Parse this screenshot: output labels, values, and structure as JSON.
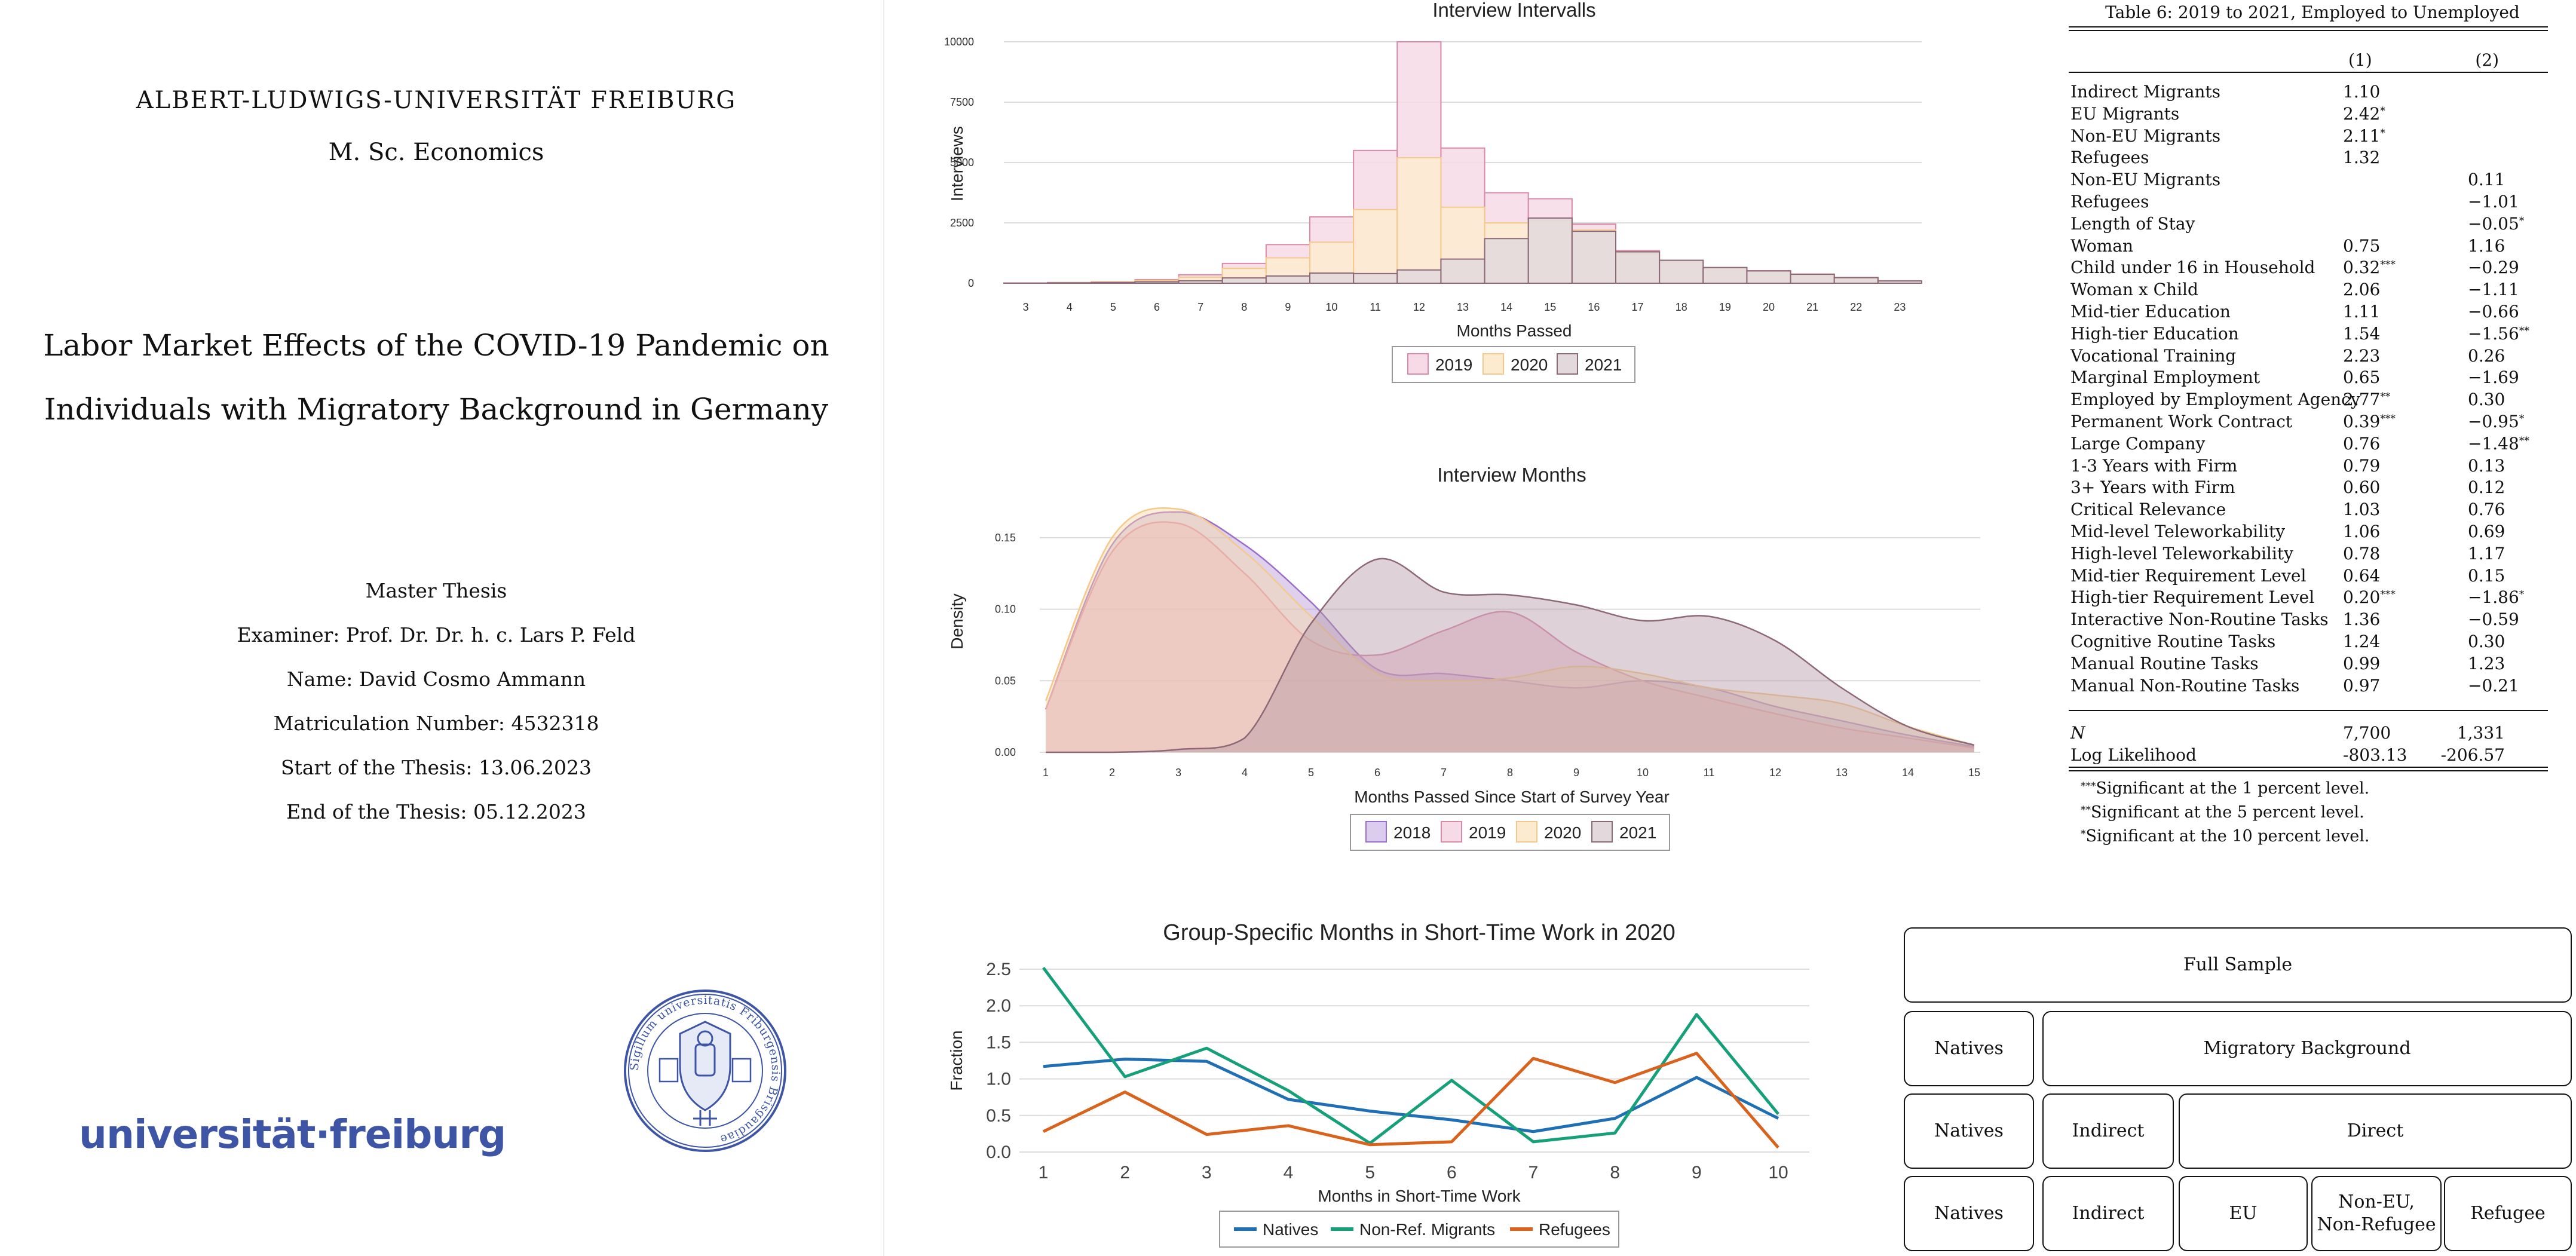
{
  "title_page": {
    "university": "ALBERT-LUDWIGS-UNIVERSITÄT FREIBURG",
    "degree": "M. Sc. Economics",
    "title_line1": "Labor Market Effects of the COVID-19 Pandemic on",
    "title_line2": "Individuals with Migratory Background in Germany",
    "meta": [
      "Master Thesis",
      "Examiner: Prof. Dr. Dr. h. c. Lars P. Feld",
      "Name: David Cosmo Ammann",
      "Matriculation Number: 4532318",
      "Start of the Thesis: 13.06.2023",
      "End of the Thesis: 05.12.2023"
    ],
    "logo_text": "universität·freiburg",
    "seal_text": "Sigillum universitatis Friburgensis Brisgaudiae"
  },
  "colors": {
    "y2018": "#9b6fc9",
    "y2019": "#d98aa8",
    "y2020": "#f5c98c",
    "y2021": "#8d6877",
    "natives": "#1f6fb4",
    "nonref": "#16a07a",
    "refugees": "#d9631c",
    "brand": "#3d55a4"
  },
  "chart_data": [
    {
      "type": "bar",
      "title": "Interview Intervalls",
      "xlabel": "Months Passed",
      "ylabel": "Interviews",
      "ylim": [
        0,
        10000
      ],
      "yticks": [
        "0",
        "2500",
        "5000",
        "7500",
        "10000"
      ],
      "categories": [
        "3",
        "4",
        "5",
        "6",
        "7",
        "8",
        "9",
        "10",
        "11",
        "12",
        "13",
        "14",
        "15",
        "16",
        "17",
        "18",
        "19",
        "20",
        "21",
        "22",
        "23"
      ],
      "series": [
        {
          "name": "2019",
          "values": [
            10,
            30,
            60,
            150,
            350,
            820,
            1600,
            2750,
            5500,
            10000,
            5600,
            3750,
            3500,
            2450,
            1350,
            950,
            650,
            520,
            380,
            240,
            100
          ]
        },
        {
          "name": "2020",
          "values": [
            5,
            20,
            50,
            120,
            250,
            620,
            1050,
            1700,
            3050,
            5200,
            3150,
            2500,
            2600,
            2200,
            1250,
            900,
            620,
            500,
            360,
            230,
            95
          ]
        },
        {
          "name": "2021",
          "values": [
            5,
            15,
            30,
            60,
            100,
            220,
            300,
            420,
            400,
            550,
            1000,
            1850,
            2700,
            2150,
            1300,
            950,
            650,
            510,
            370,
            230,
            95
          ]
        }
      ],
      "grid": true,
      "legend": "bottom"
    },
    {
      "type": "area",
      "title": "Interview Months",
      "xlabel": "Months Passed Since Start of Survey Year",
      "ylabel": "Density",
      "ylim": [
        0,
        0.175
      ],
      "yticks": [
        "0.00",
        "0.05",
        "0.10",
        "0.15"
      ],
      "x": [
        1,
        2,
        3,
        4,
        5,
        6,
        7,
        8,
        9,
        10,
        11,
        12,
        13,
        14,
        15
      ],
      "series": [
        {
          "name": "2018",
          "values": [
            0.03,
            0.145,
            0.168,
            0.145,
            0.105,
            0.058,
            0.055,
            0.05,
            0.045,
            0.05,
            0.045,
            0.032,
            0.022,
            0.012,
            0.004
          ]
        },
        {
          "name": "2019",
          "values": [
            0.03,
            0.14,
            0.16,
            0.125,
            0.078,
            0.068,
            0.085,
            0.098,
            0.07,
            0.05,
            0.038,
            0.027,
            0.017,
            0.01,
            0.003
          ]
        },
        {
          "name": "2020",
          "values": [
            0.036,
            0.15,
            0.17,
            0.14,
            0.095,
            0.055,
            0.05,
            0.052,
            0.06,
            0.055,
            0.045,
            0.04,
            0.034,
            0.018,
            0.005
          ]
        },
        {
          "name": "2021",
          "values": [
            0.0,
            0.0,
            0.002,
            0.01,
            0.09,
            0.135,
            0.112,
            0.11,
            0.103,
            0.092,
            0.095,
            0.078,
            0.045,
            0.018,
            0.005
          ]
        }
      ],
      "grid": true,
      "legend": "bottom"
    },
    {
      "type": "line",
      "title": "Group-Specific Months in Short-Time Work in 2020",
      "xlabel": "Months in Short-Time Work",
      "ylabel": "Fraction",
      "ylim": [
        0,
        2.5
      ],
      "yticks": [
        "0.0",
        "0.5",
        "1.0",
        "1.5",
        "2.0",
        "2.5"
      ],
      "x": [
        1,
        2,
        3,
        4,
        5,
        6,
        7,
        8,
        9,
        10
      ],
      "series": [
        {
          "name": "Natives",
          "values": [
            1.17,
            1.27,
            1.24,
            0.72,
            0.56,
            0.44,
            0.28,
            0.46,
            1.02,
            0.46
          ]
        },
        {
          "name": "Non-Ref. Migrants",
          "values": [
            2.52,
            1.03,
            1.42,
            0.84,
            0.12,
            0.98,
            0.14,
            0.26,
            1.88,
            0.52
          ]
        },
        {
          "name": "Refugees",
          "values": [
            0.28,
            0.82,
            0.24,
            0.36,
            0.1,
            0.14,
            1.28,
            0.95,
            1.35,
            0.06
          ]
        }
      ],
      "grid": true,
      "legend": "bottom"
    }
  ],
  "table": {
    "caption": "Table 6: 2019 to 2021, Employed to Unemployed",
    "col_headers": [
      "(1)",
      "(2)"
    ],
    "rows": [
      {
        "label": "Indirect Migrants",
        "c1": "1.10",
        "c1s": "",
        "c2": "",
        "c2s": ""
      },
      {
        "label": "EU Migrants",
        "c1": "2.42",
        "c1s": "*",
        "c2": "",
        "c2s": ""
      },
      {
        "label": "Non-EU Migrants",
        "c1": "2.11",
        "c1s": "*",
        "c2": "",
        "c2s": ""
      },
      {
        "label": "Refugees",
        "c1": "1.32",
        "c1s": "",
        "c2": "",
        "c2s": ""
      },
      {
        "label": "Non-EU Migrants",
        "c1": "",
        "c1s": "",
        "c2": "0.11",
        "c2s": ""
      },
      {
        "label": "Refugees",
        "c1": "",
        "c1s": "",
        "c2": "−1.01",
        "c2s": ""
      },
      {
        "label": "Length of Stay",
        "c1": "",
        "c1s": "",
        "c2": "−0.05",
        "c2s": "*"
      },
      {
        "label": "Woman",
        "c1": "0.75",
        "c1s": "",
        "c2": "1.16",
        "c2s": ""
      },
      {
        "label": "Child under 16 in Household",
        "c1": "0.32",
        "c1s": "***",
        "c2": "−0.29",
        "c2s": ""
      },
      {
        "label": "Woman x Child",
        "c1": "2.06",
        "c1s": "",
        "c2": "−1.11",
        "c2s": ""
      },
      {
        "label": "Mid-tier Education",
        "c1": "1.11",
        "c1s": "",
        "c2": "−0.66",
        "c2s": ""
      },
      {
        "label": "High-tier Education",
        "c1": "1.54",
        "c1s": "",
        "c2": "−1.56",
        "c2s": "**"
      },
      {
        "label": "Vocational Training",
        "c1": "2.23",
        "c1s": "",
        "c2": "0.26",
        "c2s": ""
      },
      {
        "label": "Marginal Employment",
        "c1": "0.65",
        "c1s": "",
        "c2": "−1.69",
        "c2s": ""
      },
      {
        "label": "Employed by Employment Agency",
        "c1": "2.77",
        "c1s": "**",
        "c2": "0.30",
        "c2s": ""
      },
      {
        "label": "Permanent Work Contract",
        "c1": "0.39",
        "c1s": "***",
        "c2": "−0.95",
        "c2s": "*"
      },
      {
        "label": "Large Company",
        "c1": "0.76",
        "c1s": "",
        "c2": "−1.48",
        "c2s": "**"
      },
      {
        "label": "1-3 Years with Firm",
        "c1": "0.79",
        "c1s": "",
        "c2": "0.13",
        "c2s": ""
      },
      {
        "label": "3+ Years with Firm",
        "c1": "0.60",
        "c1s": "",
        "c2": "0.12",
        "c2s": ""
      },
      {
        "label": "Critical Relevance",
        "c1": "1.03",
        "c1s": "",
        "c2": "0.76",
        "c2s": ""
      },
      {
        "label": "Mid-level Teleworkability",
        "c1": "1.06",
        "c1s": "",
        "c2": "0.69",
        "c2s": ""
      },
      {
        "label": "High-level Teleworkability",
        "c1": "0.78",
        "c1s": "",
        "c2": "1.17",
        "c2s": ""
      },
      {
        "label": "Mid-tier Requirement Level",
        "c1": "0.64",
        "c1s": "",
        "c2": "0.15",
        "c2s": ""
      },
      {
        "label": "High-tier Requirement Level",
        "c1": "0.20",
        "c1s": "***",
        "c2": "−1.86",
        "c2s": "*"
      },
      {
        "label": "Interactive Non-Routine Tasks",
        "c1": "1.36",
        "c1s": "",
        "c2": "−0.59",
        "c2s": ""
      },
      {
        "label": "Cognitive Routine Tasks",
        "c1": "1.24",
        "c1s": "",
        "c2": "0.30",
        "c2s": ""
      },
      {
        "label": "Manual Routine Tasks",
        "c1": "0.99",
        "c1s": "",
        "c2": "1.23",
        "c2s": ""
      },
      {
        "label": "Manual Non-Routine Tasks",
        "c1": "0.97",
        "c1s": "",
        "c2": "−0.21",
        "c2s": ""
      }
    ],
    "stats": [
      {
        "label": "N",
        "c1": "7,700",
        "c2": "1,331"
      },
      {
        "label": "Log Likelihood",
        "c1": "-803.13",
        "c2": "-206.57"
      }
    ],
    "notes": [
      {
        "stars": "***",
        "text": "Significant at the 1 percent level."
      },
      {
        "stars": "**",
        "text": "Significant at the 5 percent level."
      },
      {
        "stars": "*",
        "text": "Significant at the 10 percent level."
      }
    ]
  },
  "diagram": {
    "full_sample": "Full Sample",
    "natives": "Natives",
    "migratory_background": "Migratory Background",
    "indirect": "Indirect",
    "direct": "Direct",
    "eu": "EU",
    "non_eu_line1": "Non-EU,",
    "non_eu_line2": "Non-Refugee",
    "refugee": "Refugee"
  }
}
